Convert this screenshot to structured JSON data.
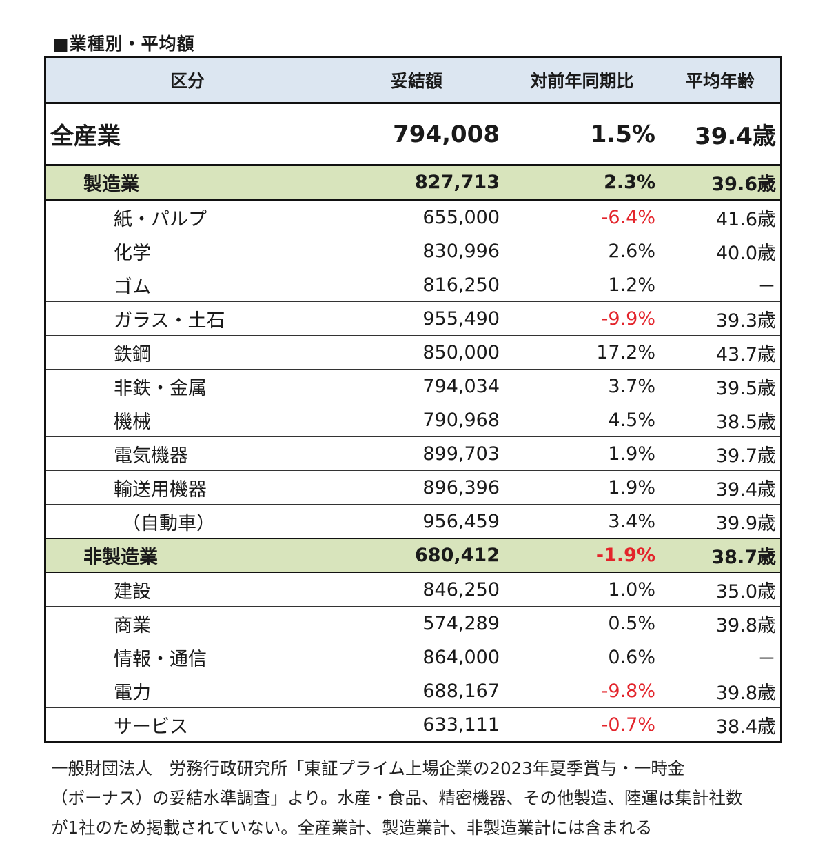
{
  "title": "■業種別・平均額",
  "chart_data": {
    "type": "table",
    "columns": [
      "区分",
      "妥結額",
      "対前年同期比",
      "平均年齢"
    ],
    "rows": [
      {
        "kind": "total",
        "label": "全産業",
        "amount": "794,008",
        "yoy": "1.5%",
        "age": "39.4歳",
        "negative": false
      },
      {
        "kind": "sector",
        "label": "製造業",
        "amount": "827,713",
        "yoy": "2.3%",
        "age": "39.6歳",
        "negative": false
      },
      {
        "kind": "sub",
        "label": "紙・パルプ",
        "amount": "655,000",
        "yoy": "-6.4%",
        "age": "41.6歳",
        "negative": true
      },
      {
        "kind": "sub",
        "label": "化学",
        "amount": "830,996",
        "yoy": "2.6%",
        "age": "40.0歳",
        "negative": false
      },
      {
        "kind": "sub",
        "label": "ゴム",
        "amount": "816,250",
        "yoy": "1.2%",
        "age": "－",
        "negative": false
      },
      {
        "kind": "sub",
        "label": "ガラス・土石",
        "amount": "955,490",
        "yoy": "-9.9%",
        "age": "39.3歳",
        "negative": true
      },
      {
        "kind": "sub",
        "label": "鉄鋼",
        "amount": "850,000",
        "yoy": "17.2%",
        "age": "43.7歳",
        "negative": false
      },
      {
        "kind": "sub",
        "label": "非鉄・金属",
        "amount": "794,034",
        "yoy": "3.7%",
        "age": "39.5歳",
        "negative": false
      },
      {
        "kind": "sub",
        "label": "機械",
        "amount": "790,968",
        "yoy": "4.5%",
        "age": "38.5歳",
        "negative": false
      },
      {
        "kind": "sub",
        "label": "電気機器",
        "amount": "899,703",
        "yoy": "1.9%",
        "age": "39.7歳",
        "negative": false
      },
      {
        "kind": "sub",
        "label": "輸送用機器",
        "amount": "896,396",
        "yoy": "1.9%",
        "age": "39.4歳",
        "negative": false
      },
      {
        "kind": "sub auto",
        "label": "（自動車）",
        "amount": "956,459",
        "yoy": "3.4%",
        "age": "39.9歳",
        "negative": false
      },
      {
        "kind": "sector",
        "label": "非製造業",
        "amount": "680,412",
        "yoy": "-1.9%",
        "age": "38.7歳",
        "negative": true
      },
      {
        "kind": "sub",
        "label": "建設",
        "amount": "846,250",
        "yoy": "1.0%",
        "age": "35.0歳",
        "negative": false
      },
      {
        "kind": "sub",
        "label": "商業",
        "amount": "574,289",
        "yoy": "0.5%",
        "age": "39.8歳",
        "negative": false
      },
      {
        "kind": "sub",
        "label": "情報・通信",
        "amount": "864,000",
        "yoy": "0.6%",
        "age": "－",
        "negative": false
      },
      {
        "kind": "sub",
        "label": "電力",
        "amount": "688,167",
        "yoy": "-9.8%",
        "age": "39.8歳",
        "negative": true
      },
      {
        "kind": "sub",
        "label": "サービス",
        "amount": "633,111",
        "yoy": "-0.7%",
        "age": "38.4歳",
        "negative": true
      }
    ]
  },
  "note": {
    "line1": "一般財団法人　労務行政研究所「東証プライム上場企業の2023年夏季賞与・一時金",
    "line2": "（ボーナス）の妥結水準調査」より。水産・食品、精密機器、その他製造、陸運は集計社数",
    "line3": "が1社のため掲載されていない。全産業計、製造業計、非製造業計には含まれる"
  },
  "colors": {
    "header_bg": "#dce6f1",
    "sector_bg": "#d8e4bc",
    "negative": "#e3242b"
  }
}
